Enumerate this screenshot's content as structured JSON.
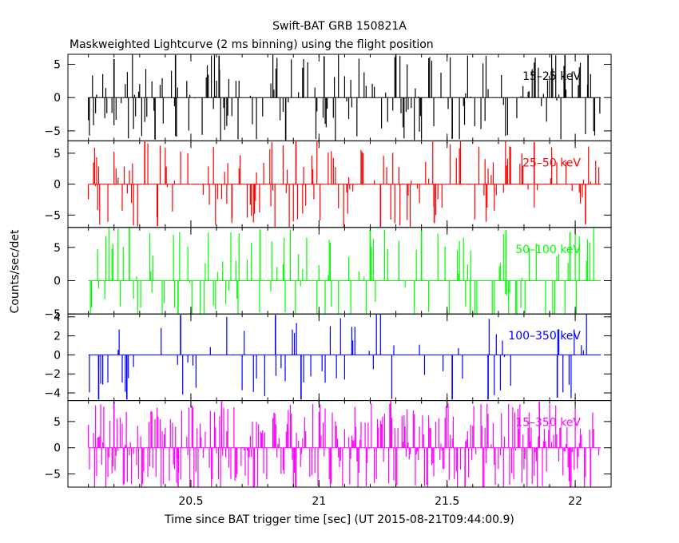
{
  "chart_data": {
    "type": "line",
    "title": "Swift-BAT GRB 150821A",
    "subtitle": "Maskweighted Lightcurve (2 ms binning) using the flight position",
    "xlabel": "Time since BAT trigger time [sec] (UT 2015-08-21T09:44:00.9)",
    "ylabel": "Counts/sec/det",
    "xlim": [
      20.02,
      22.14
    ],
    "x_ticks": [
      "20.5",
      "21",
      "21.5",
      "22"
    ],
    "x_tick_values": [
      20.5,
      21.0,
      21.5,
      22.0
    ],
    "grid": false,
    "panels": [
      {
        "band": "15–25 keV",
        "color": "#000000",
        "ylim": [
          -6.5,
          6.5
        ],
        "y_ticks": [
          "5",
          "0",
          "−5"
        ],
        "y_tick_values": [
          5,
          0,
          -5
        ],
        "start": 20.1,
        "end": 22.1,
        "seed": 11,
        "density": 0.38,
        "amp": 6.5,
        "peaks": [
          {
            "x": 20.2,
            "y": 5.8
          },
          {
            "x": 20.36,
            "y": -6.3
          },
          {
            "x": 20.44,
            "y": 6.4
          },
          {
            "x": 20.61,
            "y": 6.3
          },
          {
            "x": 20.87,
            "y": -6.4
          },
          {
            "x": 21.02,
            "y": 6.2
          },
          {
            "x": 21.3,
            "y": 6.4
          },
          {
            "x": 21.52,
            "y": -6.2
          },
          {
            "x": 21.96,
            "y": 6.4
          },
          {
            "x": 22.05,
            "y": 6.4
          }
        ]
      },
      {
        "band": "25–50 keV",
        "color": "#ff0000",
        "ylim": [
          -7,
          7
        ],
        "y_ticks": [
          "5",
          "0",
          "−5"
        ],
        "y_tick_values": [
          5,
          0,
          -5
        ],
        "start": 20.1,
        "end": 22.1,
        "seed": 23,
        "density": 0.26,
        "amp": 7,
        "peaks": [
          {
            "x": 20.32,
            "y": 6.9
          },
          {
            "x": 20.37,
            "y": -6.8
          },
          {
            "x": 20.66,
            "y": -5.5
          },
          {
            "x": 20.91,
            "y": 6.9
          },
          {
            "x": 21.24,
            "y": -6.9
          },
          {
            "x": 21.45,
            "y": -6.3
          },
          {
            "x": 21.84,
            "y": 6.8
          },
          {
            "x": 22.04,
            "y": -6.5
          }
        ]
      },
      {
        "band": "50–100 keV",
        "color": "#00ff00",
        "ylim": [
          -5,
          8
        ],
        "y_ticks": [
          "5",
          "0",
          "−5"
        ],
        "y_tick_values": [
          5,
          0,
          -5
        ],
        "start": 20.1,
        "end": 22.1,
        "seed": 37,
        "density": 0.24,
        "amp": 8,
        "peaks": [
          {
            "x": 20.26,
            "y": 7.9
          },
          {
            "x": 20.45,
            "y": -4.9
          },
          {
            "x": 20.77,
            "y": 7.7
          },
          {
            "x": 21.2,
            "y": 7.8
          },
          {
            "x": 21.4,
            "y": 7.5
          },
          {
            "x": 21.59,
            "y": -4.9
          },
          {
            "x": 21.73,
            "y": 7.6
          },
          {
            "x": 21.98,
            "y": 7.3
          }
        ]
      },
      {
        "band": "100–350 keV",
        "color": "#0000ff",
        "ylim": [
          -4.8,
          4.3
        ],
        "y_ticks": [
          "4",
          "2",
          "0",
          "−2",
          "−4"
        ],
        "y_tick_values": [
          4,
          2,
          0,
          -2,
          -4
        ],
        "start": 20.1,
        "end": 22.1,
        "seed": 53,
        "density": 0.12,
        "amp": 4.8,
        "peaks": [
          {
            "x": 20.14,
            "y": -4.7
          },
          {
            "x": 20.25,
            "y": -4.7
          },
          {
            "x": 20.46,
            "y": 4.2
          },
          {
            "x": 20.83,
            "y": 4.2
          },
          {
            "x": 20.93,
            "y": -4.7
          },
          {
            "x": 21.52,
            "y": -4.7
          },
          {
            "x": 21.66,
            "y": -4.7
          },
          {
            "x": 21.93,
            "y": -4.5
          }
        ]
      },
      {
        "band": "15–350 keV",
        "color": "#ff00ff",
        "ylim": [
          -7.5,
          9
        ],
        "y_ticks": [
          "5",
          "0",
          "−5"
        ],
        "y_tick_values": [
          5,
          0,
          -5
        ],
        "start": 20.1,
        "end": 22.1,
        "seed": 71,
        "density": 0.7,
        "amp": 8.5,
        "peaks": [
          {
            "x": 20.2,
            "y": 8.8
          },
          {
            "x": 20.45,
            "y": -7.4
          },
          {
            "x": 20.62,
            "y": 8.9
          },
          {
            "x": 20.91,
            "y": -7.4
          },
          {
            "x": 21.28,
            "y": 8.9
          },
          {
            "x": 21.57,
            "y": -7.4
          },
          {
            "x": 21.86,
            "y": 8.8
          },
          {
            "x": 22.06,
            "y": -7.3
          }
        ]
      }
    ]
  }
}
